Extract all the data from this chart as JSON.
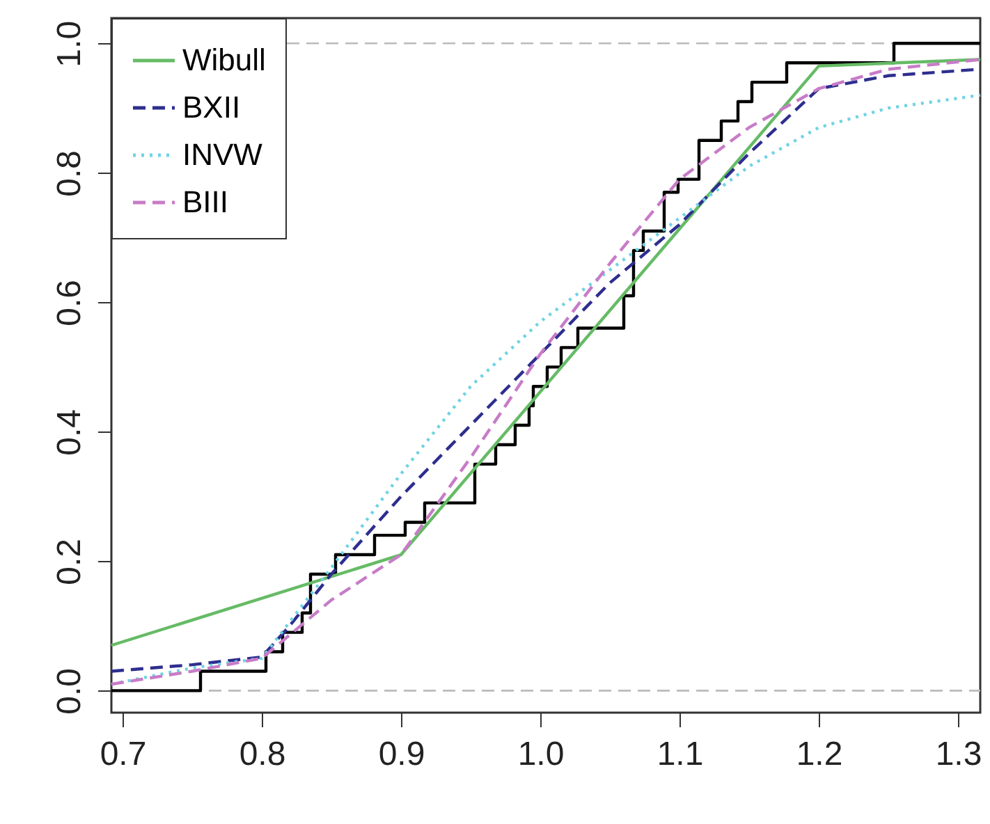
{
  "chart_data": {
    "type": "line",
    "series": [
      {
        "type": "step",
        "color": "#000000",
        "x": [
          0.692,
          0.756,
          0.803,
          0.815,
          0.829,
          0.835,
          0.853,
          0.881,
          0.903,
          0.917,
          0.953,
          0.968,
          0.982,
          0.992,
          0.995,
          1.005,
          1.015,
          1.027,
          1.06,
          1.067,
          1.074,
          1.089,
          1.099,
          1.114,
          1.13,
          1.142,
          1.152,
          1.177,
          1.254,
          1.316
        ],
        "values": [
          0,
          0.03,
          0.06,
          0.09,
          0.12,
          0.18,
          0.21,
          0.24,
          0.26,
          0.29,
          0.35,
          0.38,
          0.41,
          0.44,
          0.47,
          0.5,
          0.53,
          0.56,
          0.61,
          0.68,
          0.71,
          0.77,
          0.79,
          0.85,
          0.88,
          0.91,
          0.94,
          0.97,
          1.0,
          1.0
        ],
        "line_style": "solid"
      },
      {
        "name": "Wibull",
        "type": "line",
        "color": "#66bb66",
        "x": [
          0.692,
          0.9,
          1.2,
          1.316
        ],
        "values": [
          0.07,
          0.21,
          0.965,
          0.975
        ],
        "line_style": "solid"
      },
      {
        "name": "BXII",
        "type": "line",
        "color": "#2e2e8f",
        "x": [
          0.692,
          0.75,
          0.8,
          0.82,
          0.85,
          0.9,
          0.95,
          1.0,
          1.05,
          1.1,
          1.15,
          1.2,
          1.25,
          1.316
        ],
        "values": [
          0.03,
          0.04,
          0.052,
          0.1,
          0.18,
          0.3,
          0.41,
          0.52,
          0.63,
          0.72,
          0.83,
          0.93,
          0.95,
          0.96
        ],
        "line_style": "dashed"
      },
      {
        "name": "INVW",
        "type": "line",
        "color": "#6fd3e3",
        "x": [
          0.692,
          0.75,
          0.8,
          0.85,
          0.9,
          0.95,
          1.0,
          1.05,
          1.1,
          1.15,
          1.2,
          1.25,
          1.316
        ],
        "values": [
          0.01,
          0.035,
          0.05,
          0.19,
          0.335,
          0.47,
          0.57,
          0.65,
          0.73,
          0.81,
          0.87,
          0.9,
          0.92
        ],
        "line_style": "dotted"
      },
      {
        "name": "BIII",
        "type": "line",
        "color": "#c77cc7",
        "x": [
          0.692,
          0.75,
          0.8,
          0.85,
          0.9,
          0.95,
          1.0,
          1.05,
          1.1,
          1.15,
          1.2,
          1.25,
          1.316
        ],
        "values": [
          0.01,
          0.03,
          0.05,
          0.14,
          0.21,
          0.36,
          0.52,
          0.66,
          0.79,
          0.87,
          0.93,
          0.96,
          0.975
        ],
        "line_style": "dashed"
      }
    ],
    "xlim": [
      0.692,
      1.316
    ],
    "ylim": [
      -0.034,
      1.039
    ],
    "xticks": [
      0.7,
      0.8,
      0.9,
      {
        "value": 1,
        "label": "1.0"
      },
      1.1,
      1.2,
      1.3
    ],
    "yticks": [
      {
        "value": 0,
        "label": "0.0"
      },
      0.2,
      0.4,
      0.6,
      0.8,
      {
        "value": 1,
        "label": "1.0"
      }
    ],
    "ref_lines": [
      {
        "axis": "y",
        "value": 0,
        "color": "#bbbbbb",
        "line_style": "dashed"
      },
      {
        "axis": "y",
        "value": 1,
        "color": "#bbbbbb",
        "line_style": "dashed"
      }
    ],
    "legend": "top left",
    "grid": false
  }
}
